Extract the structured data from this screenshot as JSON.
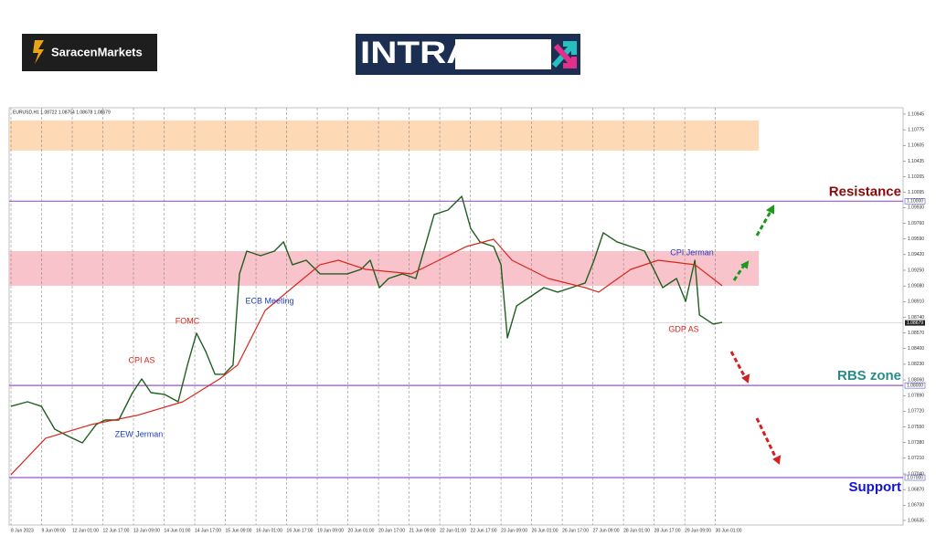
{
  "header": {
    "brand": "SaracenMarkets",
    "banner": "INTRADAY"
  },
  "chart_data": {
    "type": "line",
    "title": "EURUSD,H1 1.08722 1.08754 1.08678 1.08679",
    "xlim": [
      -0.06,
      29.13
    ],
    "ylim": [
      1.06485,
      1.11014
    ],
    "xticks": [
      {
        "value": 0,
        "label": "8 Jun 2023"
      },
      {
        "value": 1,
        "label": "9 Jun 09:00"
      },
      {
        "value": 2,
        "label": "12 Jun 01:00"
      },
      {
        "value": 3,
        "label": "12 Jun 17:00"
      },
      {
        "value": 4,
        "label": "13 Jun 09:00"
      },
      {
        "value": 5,
        "label": "14 Jun 01:00"
      },
      {
        "value": 6,
        "label": "14 Jun 17:00"
      },
      {
        "value": 7,
        "label": "15 Jun 09:00"
      },
      {
        "value": 8,
        "label": "16 Jun 01:00"
      },
      {
        "value": 9,
        "label": "16 Jun 17:00"
      },
      {
        "value": 10,
        "label": "19 Jun 09:00"
      },
      {
        "value": 11,
        "label": "20 Jun 01:00"
      },
      {
        "value": 12,
        "label": "20 Jun 17:00"
      },
      {
        "value": 13,
        "label": "21 Jun 09:00"
      },
      {
        "value": 14,
        "label": "22 Jun 01:00"
      },
      {
        "value": 15,
        "label": "22 Jun 17:00"
      },
      {
        "value": 16,
        "label": "23 Jun 09:00"
      },
      {
        "value": 17,
        "label": "26 Jun 01:00"
      },
      {
        "value": 18,
        "label": "26 Jun 17:00"
      },
      {
        "value": 19,
        "label": "27 Jun 09:00"
      },
      {
        "value": 20,
        "label": "28 Jun 01:00"
      },
      {
        "value": 21,
        "label": "28 Jun 17:00"
      },
      {
        "value": 22,
        "label": "29 Jun 09:00"
      },
      {
        "value": 23,
        "label": "30 Jun 01:00"
      }
    ],
    "yticks": [
      1.10945,
      1.10775,
      1.10605,
      1.10435,
      1.10265,
      1.10095,
      {
        "value": 1.0993,
        "label": "1.09930"
      },
      {
        "value": 1.0976,
        "label": "1.09760"
      },
      {
        "value": 1.0959,
        "label": "1.09590"
      },
      {
        "value": 1.0942,
        "label": "1.09420"
      },
      {
        "value": 1.0925,
        "label": "1.09250"
      },
      {
        "value": 1.0908,
        "label": "1.09080"
      },
      {
        "value": 1.0891,
        "label": "1.08910"
      },
      {
        "value": 1.0874,
        "label": "1.08740"
      },
      {
        "value": 1.0857,
        "label": "1.08570"
      },
      {
        "value": 1.084,
        "label": "1.08400"
      },
      {
        "value": 1.0823,
        "label": "1.08230"
      },
      {
        "value": 1.0806,
        "label": "1.08060"
      },
      {
        "value": 1.0789,
        "label": "1.07890"
      },
      {
        "value": 1.0772,
        "label": "1.07720"
      },
      {
        "value": 1.0755,
        "label": "1.07550"
      },
      {
        "value": 1.0738,
        "label": "1.07380"
      },
      {
        "value": 1.0721,
        "label": "1.07210"
      },
      {
        "value": 1.0704,
        "label": "1.07040"
      },
      {
        "value": 1.0687,
        "label": "1.06870"
      },
      {
        "value": 1.067,
        "label": "1.06700"
      },
      1.06535
    ],
    "grid": true,
    "series": [
      {
        "color": "#1f5f1f",
        "x": [
          0,
          0.54,
          0.99,
          1.43,
          1.88,
          2.33,
          2.78,
          3.07,
          3.52,
          3.97,
          4.27,
          4.57,
          5.01,
          5.46,
          5.76,
          6.06,
          6.36,
          6.66,
          6.96,
          7.25,
          7.46,
          7.7,
          8.15,
          8.6,
          8.9,
          9.19,
          9.64,
          10.09,
          10.54,
          10.99,
          11.43,
          11.73,
          12.03,
          12.33,
          12.78,
          13.22,
          13.52,
          13.82,
          14.27,
          14.72,
          15.01,
          15.31,
          15.76,
          16.0,
          16.21,
          16.51,
          16.96,
          17.4,
          17.85,
          18.3,
          18.75,
          19.04,
          19.34,
          19.79,
          20.24,
          20.69,
          20.99,
          21.28,
          21.73,
          22.03,
          22.33,
          22.48,
          22.93,
          23.22
        ],
        "values": [
          1.07774,
          1.07823,
          1.07774,
          1.07526,
          1.07447,
          1.07377,
          1.07576,
          1.07625,
          1.07625,
          1.07922,
          1.08071,
          1.07922,
          1.07903,
          1.07823,
          1.0822,
          1.08567,
          1.08368,
          1.08121,
          1.08121,
          1.0822,
          1.09211,
          1.09458,
          1.09409,
          1.09458,
          1.09558,
          1.0931,
          1.09359,
          1.09211,
          1.09211,
          1.09211,
          1.0926,
          1.09359,
          1.09062,
          1.09161,
          1.09211,
          1.09161,
          1.09508,
          1.09855,
          1.09904,
          1.10053,
          1.09706,
          1.09558,
          1.09508,
          1.0931,
          1.08517,
          1.08864,
          1.08963,
          1.09062,
          1.09013,
          1.09062,
          1.09112,
          1.09359,
          1.09657,
          1.09558,
          1.09508,
          1.09458,
          1.0926,
          1.09062,
          1.09161,
          1.08913,
          1.09359,
          1.08765,
          1.08666,
          1.08685
        ]
      },
      {
        "color": "#d9261c",
        "x": [
          0,
          1.13,
          2.63,
          4.12,
          5.61,
          6.81,
          7.4,
          8.3,
          9.19,
          10.09,
          10.69,
          11.58,
          13.07,
          13.97,
          14.87,
          15.76,
          16.36,
          17.55,
          18.75,
          19.19,
          20.24,
          21.13,
          22.33,
          23.22
        ],
        "values": [
          1.07031,
          1.07427,
          1.07576,
          1.07675,
          1.07823,
          1.08071,
          1.0822,
          1.08814,
          1.09062,
          1.0931,
          1.09359,
          1.0926,
          1.09211,
          1.09359,
          1.09508,
          1.09587,
          1.09359,
          1.09161,
          1.09062,
          1.09013,
          1.0926,
          1.09359,
          1.0931,
          1.09082
        ]
      }
    ],
    "zones": [
      {
        "from": 1.10549,
        "to": 1.10876,
        "x_end": 24.42,
        "color": "#fdd9b5"
      },
      {
        "from": 1.09082,
        "to": 1.09458,
        "x_end": 24.42,
        "color": "#f9c3cc"
      }
    ],
    "levels": [
      {
        "name": "Resistance",
        "value": 1.1,
        "label": "1.10000",
        "color": "#8b0a0a"
      },
      {
        "name": "RBS zone",
        "value": 1.08,
        "label": "1.08000",
        "color": "#2a8a8a"
      },
      {
        "name": "Support",
        "value": 1.07,
        "label": "1.07000",
        "color": "#1414c8"
      }
    ],
    "last_price": {
      "value": 1.08679,
      "label": "1.08679"
    },
    "annotations": [
      {
        "text": "CPI AS",
        "color": "#d9261c"
      },
      {
        "text": "FOMC",
        "color": "#d9261c"
      },
      {
        "text": "ECB Meeting",
        "color": "#1f3bbf"
      },
      {
        "text": "ZEW Jerman",
        "color": "#1f3bbf"
      },
      {
        "text": "CPI Jerman",
        "color": "#1f3bbf"
      },
      {
        "text": "GDP AS",
        "color": "#d9261c"
      }
    ]
  }
}
